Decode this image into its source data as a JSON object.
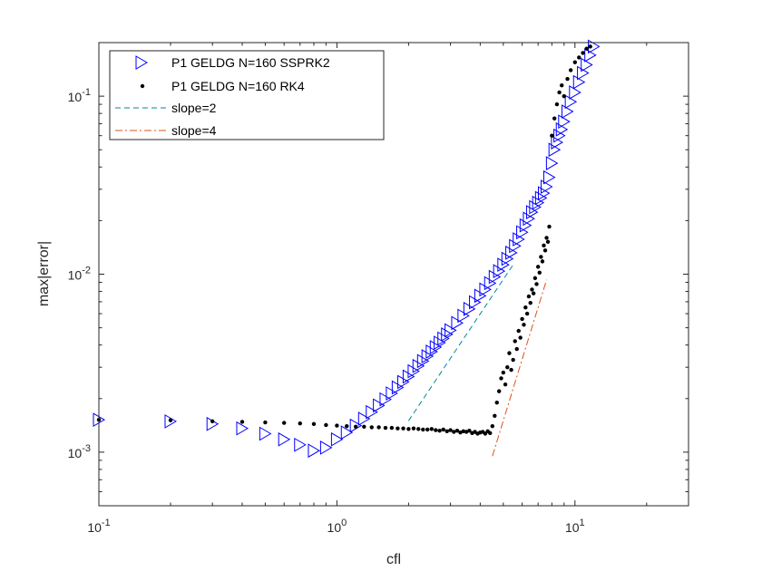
{
  "chart_data": {
    "type": "scatter",
    "xlabel": "cfl",
    "ylabel": "max|error|",
    "xscale": "log",
    "yscale": "log",
    "xlim": [
      0.1,
      30
    ],
    "ylim": [
      0.0005,
      0.2
    ],
    "xticks": [
      0.1,
      1,
      10
    ],
    "yticks": [
      0.001,
      0.01,
      0.1
    ],
    "xtick_labels": [
      {
        "base": "10",
        "exp": "-1"
      },
      {
        "base": "10",
        "exp": "0"
      },
      {
        "base": "10",
        "exp": "1"
      }
    ],
    "ytick_labels": [
      {
        "base": "10",
        "exp": "-3"
      },
      {
        "base": "10",
        "exp": "-2"
      },
      {
        "base": "10",
        "exp": "-1"
      }
    ],
    "grid": false,
    "legend_position": "top-left",
    "series": [
      {
        "name": "P1 GELDG N=160 SSPRK2",
        "marker": "triangle-right",
        "color": "#0000ff",
        "x": [
          0.1,
          0.2,
          0.3,
          0.4,
          0.5,
          0.6,
          0.7,
          0.8,
          0.9,
          1.0,
          1.1,
          1.2,
          1.3,
          1.4,
          1.5,
          1.6,
          1.7,
          1.8,
          1.9,
          2.0,
          2.1,
          2.2,
          2.3,
          2.4,
          2.5,
          2.6,
          2.7,
          2.8,
          2.9,
          3.0,
          3.2,
          3.4,
          3.6,
          3.8,
          4.0,
          4.2,
          4.4,
          4.6,
          4.8,
          5.0,
          5.2,
          5.4,
          5.6,
          5.8,
          6.0,
          6.2,
          6.4,
          6.6,
          6.8,
          7.0,
          7.2,
          7.4,
          7.6,
          7.8,
          8.0,
          8.2,
          8.4,
          8.6,
          8.8,
          9.0,
          9.3,
          9.6,
          10.0,
          10.4,
          10.8,
          11.2,
          11.6,
          12.0
        ],
        "y": [
          0.00152,
          0.00149,
          0.00144,
          0.00136,
          0.00127,
          0.00118,
          0.0011,
          0.00102,
          0.00106,
          0.00118,
          0.00129,
          0.00141,
          0.00154,
          0.00168,
          0.00183,
          0.00198,
          0.00214,
          0.00231,
          0.00248,
          0.00266,
          0.00285,
          0.00305,
          0.00325,
          0.00346,
          0.00367,
          0.00389,
          0.00412,
          0.00435,
          0.00459,
          0.00484,
          0.00532,
          0.00584,
          0.00638,
          0.00695,
          0.00756,
          0.0082,
          0.0089,
          0.00965,
          0.0104,
          0.0113,
          0.0122,
          0.0132,
          0.0144,
          0.0157,
          0.0172,
          0.0188,
          0.0205,
          0.0223,
          0.0238,
          0.0252,
          0.0268,
          0.0285,
          0.031,
          0.035,
          0.042,
          0.05,
          0.055,
          0.06,
          0.065,
          0.072,
          0.082,
          0.093,
          0.105,
          0.12,
          0.135,
          0.15,
          0.17,
          0.19
        ]
      },
      {
        "name": "P1 GELDG N=160 RK4",
        "marker": "dot",
        "color": "#000000",
        "x": [
          0.1,
          0.2,
          0.3,
          0.4,
          0.5,
          0.6,
          0.7,
          0.8,
          0.9,
          1.0,
          1.1,
          1.2,
          1.3,
          1.4,
          1.5,
          1.6,
          1.7,
          1.8,
          1.9,
          2.0,
          2.1,
          2.2,
          2.3,
          2.4,
          2.5,
          2.6,
          2.7,
          2.8,
          2.9,
          3.0,
          3.1,
          3.2,
          3.3,
          3.4,
          3.5,
          3.6,
          3.7,
          3.8,
          3.9,
          4.0,
          4.1,
          4.2,
          4.3,
          4.4,
          4.5,
          4.6,
          4.7,
          4.8,
          4.9,
          5.0,
          5.1,
          5.2,
          5.3,
          5.4,
          5.5,
          5.6,
          5.7,
          5.8,
          5.9,
          6.0,
          6.1,
          6.2,
          6.3,
          6.4,
          6.5,
          6.6,
          6.7,
          6.8,
          6.9,
          7.0,
          7.1,
          7.2,
          7.3,
          7.4,
          7.5,
          7.6,
          7.7,
          7.8,
          8.0,
          8.2,
          8.4,
          8.6,
          8.8,
          9.0,
          9.3,
          9.6,
          10.0,
          10.4,
          10.8,
          11.2,
          11.6
        ],
        "y": [
          0.00152,
          0.00151,
          0.00149,
          0.00148,
          0.00147,
          0.00146,
          0.00145,
          0.00144,
          0.00142,
          0.00141,
          0.0014,
          0.00139,
          0.00139,
          0.00138,
          0.00138,
          0.00137,
          0.00137,
          0.00136,
          0.00136,
          0.00135,
          0.00136,
          0.00135,
          0.00134,
          0.00134,
          0.00135,
          0.00133,
          0.00132,
          0.00134,
          0.00131,
          0.00133,
          0.0013,
          0.00132,
          0.00129,
          0.00131,
          0.0013,
          0.00132,
          0.00128,
          0.0013,
          0.00127,
          0.00129,
          0.0013,
          0.00127,
          0.00131,
          0.00128,
          0.0014,
          0.0016,
          0.0019,
          0.0022,
          0.0026,
          0.0028,
          0.0024,
          0.003,
          0.0036,
          0.0029,
          0.0033,
          0.0042,
          0.0038,
          0.0048,
          0.0044,
          0.0056,
          0.0052,
          0.0065,
          0.006,
          0.0075,
          0.0069,
          0.0082,
          0.0078,
          0.0095,
          0.0088,
          0.011,
          0.0102,
          0.0125,
          0.0118,
          0.0145,
          0.0136,
          0.016,
          0.0152,
          0.0185,
          0.06,
          0.075,
          0.09,
          0.105,
          0.115,
          0.1,
          0.125,
          0.14,
          0.155,
          0.165,
          0.175,
          0.185,
          0.19
        ]
      },
      {
        "name": "slope=2",
        "style": "dashed",
        "color": "#00889b",
        "x": [
          2.0,
          5.5
        ],
        "y": [
          0.0015,
          0.0113
        ]
      },
      {
        "name": "slope=4",
        "style": "dash-dot",
        "color": "#d95319",
        "x": [
          4.5,
          7.6
        ],
        "y": [
          0.00095,
          0.0093
        ]
      }
    ]
  }
}
